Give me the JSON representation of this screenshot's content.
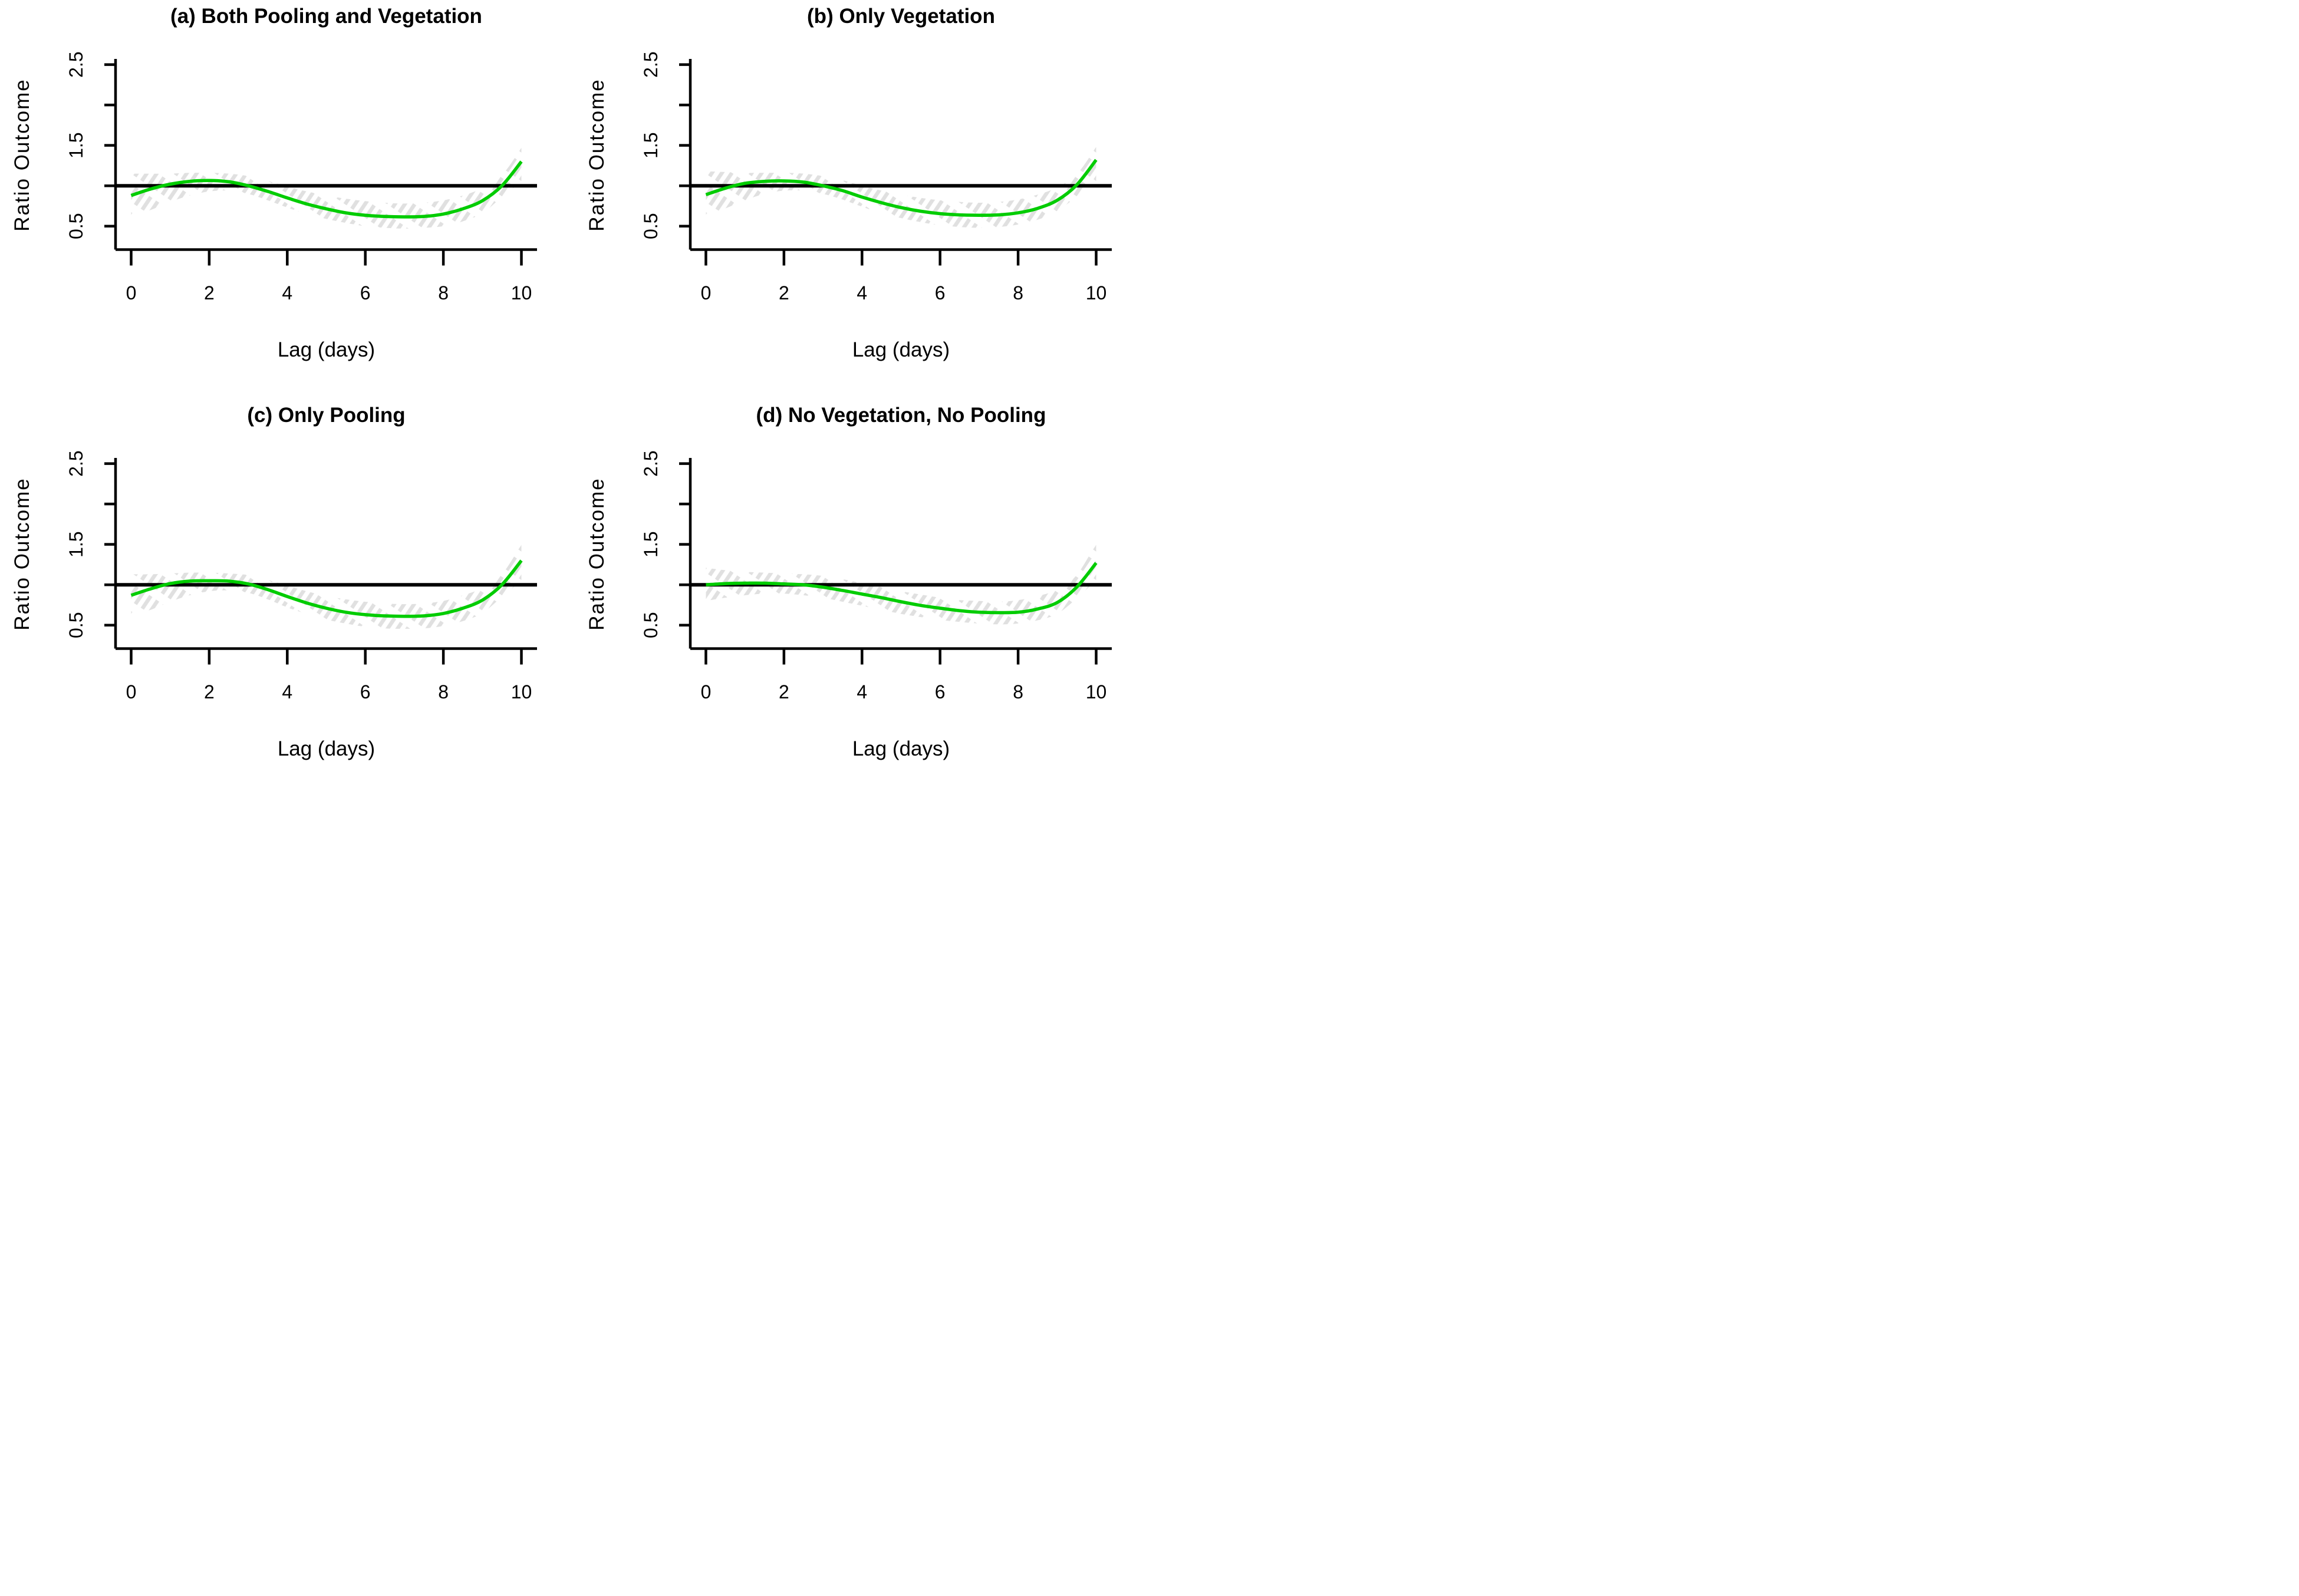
{
  "figure": {
    "background": "#FFFFFF",
    "rows": 2,
    "cols": 2
  },
  "style": {
    "curve_color": "#00CC00",
    "band_color": "#E0E0E0",
    "axis_color": "#000000",
    "reference_line_color": "#000000"
  },
  "chart_data": [
    {
      "id": "a",
      "type": "line",
      "title": "(a) Both Pooling and Vegetation",
      "xlabel": "Lag (days)",
      "ylabel": "Ratio Outcome",
      "legend": "none",
      "grid": "off",
      "band_style": "hatched",
      "xlim": [
        -0.4,
        10.4
      ],
      "ylim": [
        0.21,
        2.57
      ],
      "x_ticks": [
        0,
        2,
        4,
        6,
        8,
        10
      ],
      "x_tick_labels": [
        "0",
        "2",
        "4",
        "6",
        "8",
        "10"
      ],
      "y_ticks": [
        0.5,
        1.0,
        1.5,
        2.0,
        2.5
      ],
      "y_labeled_ticks": [
        0.5,
        1.5,
        2.5
      ],
      "y_tick_labels": [
        "0.5",
        "1.5",
        "2.5"
      ],
      "reference_line_y": 1.0,
      "x": [
        0,
        0.5,
        1,
        1.5,
        2,
        2.5,
        3,
        3.5,
        4,
        4.5,
        5,
        5.5,
        6,
        6.5,
        7,
        7.5,
        8,
        8.5,
        9,
        9.5,
        10
      ],
      "y": [
        0.88,
        0.96,
        1.02,
        1.055,
        1.065,
        1.05,
        1.0,
        0.93,
        0.85,
        0.775,
        0.715,
        0.665,
        0.635,
        0.62,
        0.615,
        0.62,
        0.65,
        0.715,
        0.815,
        1.0,
        1.3
      ],
      "band_upper": [
        1.15,
        1.15,
        1.15,
        1.16,
        1.16,
        1.15,
        1.12,
        1.06,
        0.99,
        0.93,
        0.88,
        0.84,
        0.81,
        0.79,
        0.78,
        0.79,
        0.82,
        0.88,
        0.97,
        1.13,
        1.47
      ],
      "band_lower": [
        0.62,
        0.7,
        0.8,
        0.88,
        0.93,
        0.94,
        0.9,
        0.82,
        0.73,
        0.65,
        0.59,
        0.54,
        0.5,
        0.48,
        0.47,
        0.48,
        0.5,
        0.56,
        0.66,
        0.86,
        1.05
      ]
    },
    {
      "id": "b",
      "type": "line",
      "title": "(b) Only Vegetation",
      "xlabel": "Lag (days)",
      "ylabel": "Ratio Outcome",
      "legend": "none",
      "grid": "off",
      "band_style": "hatched",
      "xlim": [
        -0.4,
        10.4
      ],
      "ylim": [
        0.21,
        2.57
      ],
      "x_ticks": [
        0,
        2,
        4,
        6,
        8,
        10
      ],
      "x_tick_labels": [
        "0",
        "2",
        "4",
        "6",
        "8",
        "10"
      ],
      "y_ticks": [
        0.5,
        1.0,
        1.5,
        2.0,
        2.5
      ],
      "y_labeled_ticks": [
        0.5,
        1.5,
        2.5
      ],
      "y_tick_labels": [
        "0.5",
        "1.5",
        "2.5"
      ],
      "reference_line_y": 1.0,
      "x": [
        0,
        0.5,
        1,
        1.5,
        2,
        2.5,
        3,
        3.5,
        4,
        4.5,
        5,
        5.5,
        6,
        6.5,
        7,
        7.5,
        8,
        8.5,
        9,
        9.5,
        10
      ],
      "y": [
        0.89,
        0.97,
        1.03,
        1.055,
        1.06,
        1.045,
        1.0,
        0.94,
        0.86,
        0.79,
        0.73,
        0.685,
        0.655,
        0.64,
        0.635,
        0.64,
        0.665,
        0.72,
        0.82,
        1.01,
        1.32
      ],
      "band_upper": [
        1.18,
        1.17,
        1.16,
        1.16,
        1.16,
        1.15,
        1.12,
        1.07,
        1.0,
        0.94,
        0.89,
        0.85,
        0.82,
        0.8,
        0.79,
        0.8,
        0.83,
        0.89,
        0.98,
        1.14,
        1.48
      ],
      "band_lower": [
        0.64,
        0.72,
        0.82,
        0.9,
        0.94,
        0.94,
        0.9,
        0.83,
        0.74,
        0.66,
        0.6,
        0.55,
        0.51,
        0.49,
        0.48,
        0.49,
        0.52,
        0.58,
        0.68,
        0.87,
        1.06
      ]
    },
    {
      "id": "c",
      "type": "line",
      "title": "(c) Only Pooling",
      "xlabel": "Lag (days)",
      "ylabel": "Ratio Outcome",
      "legend": "none",
      "grid": "off",
      "band_style": "hatched",
      "xlim": [
        -0.4,
        10.4
      ],
      "ylim": [
        0.21,
        2.57
      ],
      "x_ticks": [
        0,
        2,
        4,
        6,
        8,
        10
      ],
      "x_tick_labels": [
        "0",
        "2",
        "4",
        "6",
        "8",
        "10"
      ],
      "y_ticks": [
        0.5,
        1.0,
        1.5,
        2.0,
        2.5
      ],
      "y_labeled_ticks": [
        0.5,
        1.5,
        2.5
      ],
      "y_tick_labels": [
        "0.5",
        "1.5",
        "2.5"
      ],
      "reference_line_y": 1.0,
      "x": [
        0,
        0.5,
        1,
        1.5,
        2,
        2.5,
        3,
        3.5,
        4,
        4.5,
        5,
        5.5,
        6,
        6.5,
        7,
        7.5,
        8,
        8.5,
        9,
        9.5,
        10
      ],
      "y": [
        0.87,
        0.95,
        1.015,
        1.045,
        1.05,
        1.045,
        1.01,
        0.94,
        0.855,
        0.775,
        0.71,
        0.66,
        0.63,
        0.615,
        0.61,
        0.615,
        0.645,
        0.71,
        0.81,
        1.0,
        1.3
      ],
      "band_upper": [
        1.13,
        1.13,
        1.14,
        1.15,
        1.15,
        1.14,
        1.12,
        1.06,
        0.99,
        0.92,
        0.86,
        0.82,
        0.79,
        0.77,
        0.76,
        0.77,
        0.8,
        0.87,
        0.96,
        1.13,
        1.5
      ],
      "band_lower": [
        0.62,
        0.69,
        0.79,
        0.87,
        0.92,
        0.93,
        0.9,
        0.82,
        0.72,
        0.64,
        0.57,
        0.52,
        0.48,
        0.46,
        0.455,
        0.46,
        0.49,
        0.55,
        0.65,
        0.85,
        1.05
      ]
    },
    {
      "id": "d",
      "type": "line",
      "title": "(d) No Vegetation, No Pooling",
      "xlabel": "Lag (days)",
      "ylabel": "Ratio Outcome",
      "legend": "none",
      "grid": "off",
      "band_style": "hatched",
      "xlim": [
        -0.4,
        10.4
      ],
      "ylim": [
        0.21,
        2.57
      ],
      "x_ticks": [
        0,
        2,
        4,
        6,
        8,
        10
      ],
      "x_tick_labels": [
        "0",
        "2",
        "4",
        "6",
        "8",
        "10"
      ],
      "y_ticks": [
        0.5,
        1.0,
        1.5,
        2.0,
        2.5
      ],
      "y_labeled_ticks": [
        0.5,
        1.5,
        2.5
      ],
      "y_tick_labels": [
        "0.5",
        "1.5",
        "2.5"
      ],
      "reference_line_y": 1.0,
      "x": [
        0,
        0.5,
        1,
        1.5,
        2,
        2.5,
        3,
        3.5,
        4,
        4.5,
        5,
        5.5,
        6,
        6.5,
        7,
        7.5,
        8,
        8.5,
        9,
        9.5,
        10
      ],
      "y": [
        1.0,
        1.015,
        1.02,
        1.02,
        1.01,
        1.0,
        0.97,
        0.93,
        0.885,
        0.84,
        0.79,
        0.745,
        0.71,
        0.68,
        0.66,
        0.655,
        0.66,
        0.7,
        0.78,
        0.97,
        1.27
      ],
      "band_upper": [
        1.21,
        1.18,
        1.16,
        1.15,
        1.14,
        1.13,
        1.11,
        1.07,
        1.02,
        0.97,
        0.92,
        0.88,
        0.84,
        0.81,
        0.8,
        0.79,
        0.81,
        0.86,
        0.94,
        1.12,
        1.51
      ],
      "band_lower": [
        0.8,
        0.84,
        0.87,
        0.89,
        0.89,
        0.87,
        0.84,
        0.79,
        0.74,
        0.69,
        0.64,
        0.6,
        0.565,
        0.54,
        0.52,
        0.51,
        0.52,
        0.56,
        0.64,
        0.83,
        1.06
      ]
    }
  ]
}
